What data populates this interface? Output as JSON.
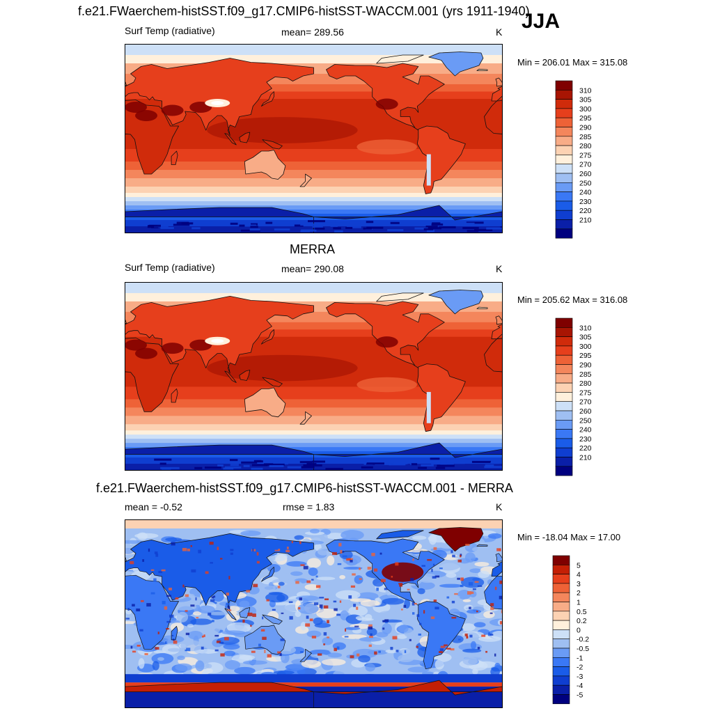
{
  "season": "JJA",
  "colors": {
    "abs_levels": [
      "#00007f",
      "#0a1fa8",
      "#0f3ed0",
      "#1a5ce8",
      "#3a78f5",
      "#6a9bf5",
      "#9fbff2",
      "#cde0f7",
      "#fff0dc",
      "#fcd2b3",
      "#f8ac87",
      "#f4865c",
      "#ee6237",
      "#e63f1c",
      "#d02b0b",
      "#a81503",
      "#7f0000"
    ],
    "diff_levels": [
      "#00007f",
      "#0a1fa8",
      "#0f3ed0",
      "#1a5ce8",
      "#3a78f5",
      "#6a9bf5",
      "#9fbff2",
      "#cde0f7",
      "#fff0dc",
      "#fcd2b3",
      "#f8ac87",
      "#f4865c",
      "#ee6237",
      "#e63f1c",
      "#c41f05",
      "#7f0000"
    ],
    "land_line": "#111111"
  },
  "panels": [
    {
      "title": "f.e21.FWaerchem-histSST.f09_g17.CMIP6-histSST-WACCM.001 (yrs 1911-1940)",
      "variable": "Surf Temp (radiative)",
      "stat": "mean= 289.56",
      "units": "K",
      "minmax": "Min = 206.01 Max = 315.08",
      "colorbar_labels": [
        "310",
        "305",
        "300",
        "295",
        "290",
        "285",
        "280",
        "275",
        "270",
        "260",
        "250",
        "240",
        "230",
        "220",
        "210"
      ],
      "kind": "abs"
    },
    {
      "title": "MERRA",
      "variable": "Surf Temp (radiative)",
      "stat": "mean= 290.08",
      "units": "K",
      "minmax": "Min = 205.62 Max = 316.08",
      "colorbar_labels": [
        "310",
        "305",
        "300",
        "295",
        "290",
        "285",
        "280",
        "275",
        "270",
        "260",
        "250",
        "240",
        "230",
        "220",
        "210"
      ],
      "kind": "abs"
    },
    {
      "title": "f.e21.FWaerchem-histSST.f09_g17.CMIP6-histSST-WACCM.001 - MERRA",
      "variable": "mean =  -0.52",
      "stat": "rmse =   1.83",
      "units": "K",
      "minmax": "Min = -18.04 Max =  17.00",
      "colorbar_labels": [
        "5",
        "4",
        "3",
        "2",
        "1",
        "0.5",
        "0.2",
        "0",
        "-0.2",
        "-0.5",
        "-1",
        "-2",
        "-3",
        "-4",
        "-5"
      ],
      "kind": "diff"
    }
  ]
}
